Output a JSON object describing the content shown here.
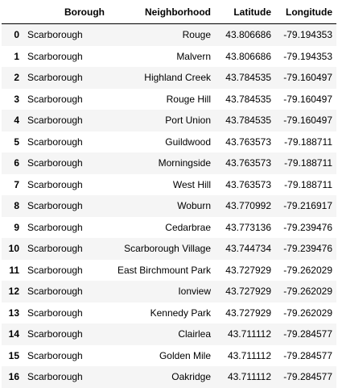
{
  "table": {
    "index_header": "",
    "columns": [
      "Borough",
      "Neighborhood",
      "Latitude",
      "Longitude"
    ],
    "rows": [
      {
        "index": "0",
        "borough": "Scarborough",
        "neighborhood": "Rouge",
        "latitude": "43.806686",
        "longitude": "-79.194353"
      },
      {
        "index": "1",
        "borough": "Scarborough",
        "neighborhood": "Malvern",
        "latitude": "43.806686",
        "longitude": "-79.194353"
      },
      {
        "index": "2",
        "borough": "Scarborough",
        "neighborhood": "Highland Creek",
        "latitude": "43.784535",
        "longitude": "-79.160497"
      },
      {
        "index": "3",
        "borough": "Scarborough",
        "neighborhood": "Rouge Hill",
        "latitude": "43.784535",
        "longitude": "-79.160497"
      },
      {
        "index": "4",
        "borough": "Scarborough",
        "neighborhood": "Port Union",
        "latitude": "43.784535",
        "longitude": "-79.160497"
      },
      {
        "index": "5",
        "borough": "Scarborough",
        "neighborhood": "Guildwood",
        "latitude": "43.763573",
        "longitude": "-79.188711"
      },
      {
        "index": "6",
        "borough": "Scarborough",
        "neighborhood": "Morningside",
        "latitude": "43.763573",
        "longitude": "-79.188711"
      },
      {
        "index": "7",
        "borough": "Scarborough",
        "neighborhood": "West Hill",
        "latitude": "43.763573",
        "longitude": "-79.188711"
      },
      {
        "index": "8",
        "borough": "Scarborough",
        "neighborhood": "Woburn",
        "latitude": "43.770992",
        "longitude": "-79.216917"
      },
      {
        "index": "9",
        "borough": "Scarborough",
        "neighborhood": "Cedarbrae",
        "latitude": "43.773136",
        "longitude": "-79.239476"
      },
      {
        "index": "10",
        "borough": "Scarborough",
        "neighborhood": "Scarborough Village",
        "latitude": "43.744734",
        "longitude": "-79.239476"
      },
      {
        "index": "11",
        "borough": "Scarborough",
        "neighborhood": "East Birchmount Park",
        "latitude": "43.727929",
        "longitude": "-79.262029"
      },
      {
        "index": "12",
        "borough": "Scarborough",
        "neighborhood": "Ionview",
        "latitude": "43.727929",
        "longitude": "-79.262029"
      },
      {
        "index": "13",
        "borough": "Scarborough",
        "neighborhood": "Kennedy Park",
        "latitude": "43.727929",
        "longitude": "-79.262029"
      },
      {
        "index": "14",
        "borough": "Scarborough",
        "neighborhood": "Clairlea",
        "latitude": "43.711112",
        "longitude": "-79.284577"
      },
      {
        "index": "15",
        "borough": "Scarborough",
        "neighborhood": "Golden Mile",
        "latitude": "43.711112",
        "longitude": "-79.284577"
      },
      {
        "index": "16",
        "borough": "Scarborough",
        "neighborhood": "Oakridge",
        "latitude": "43.711112",
        "longitude": "-79.284577"
      }
    ]
  },
  "colors": {
    "row_stripe": "#f5f5f5",
    "row_plain": "#ffffff",
    "header_rule": "#000000"
  }
}
